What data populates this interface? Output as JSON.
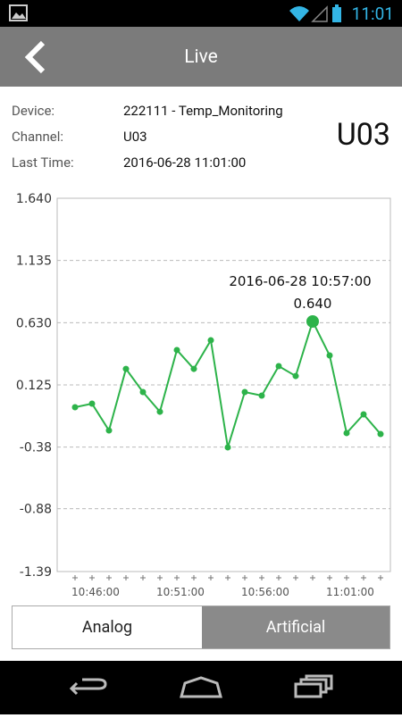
{
  "status_bar": {
    "time": "11:01"
  },
  "header": {
    "title": "Live"
  },
  "info": {
    "rows": [
      {
        "label": "Device:",
        "value": "222111 - Temp_Monitoring"
      },
      {
        "label": "Channel:",
        "value": "U03"
      },
      {
        "label": "Last Time:",
        "value": "2016-06-28 11:01:00"
      }
    ],
    "channel_badge": "U03"
  },
  "chart_data": {
    "type": "line",
    "categories": [
      null,
      "10:46:00",
      null,
      null,
      null,
      null,
      "10:51:00",
      null,
      null,
      null,
      null,
      "10:56:00",
      null,
      null,
      null,
      null,
      "11:01:00",
      null,
      null
    ],
    "values": [
      -0.056,
      -0.027,
      -0.245,
      0.255,
      0.067,
      -0.093,
      0.408,
      0.255,
      0.487,
      -0.382,
      0.067,
      0.038,
      0.277,
      0.197,
      0.64,
      0.364,
      -0.266,
      -0.114,
      -0.274
    ],
    "value_labels": [
      null,
      null,
      null,
      null,
      null,
      null,
      null,
      null,
      null,
      null,
      null,
      null,
      null,
      null,
      "0.640",
      null,
      null,
      null,
      null
    ],
    "annotations": [
      {
        "text": "2016-06-28 10:57:00"
      }
    ],
    "color": "#2db34a",
    "ylim": [
      -1.39,
      1.64
    ],
    "yticks": [
      {
        "value": 1.64,
        "label": "1.640"
      },
      1.135,
      {
        "value": 0.63,
        "label": "0.630"
      },
      0.125,
      -0.38,
      -0.88,
      -1.39
    ],
    "grid": true
  },
  "tabs": [
    "Analog",
    "Artificial"
  ]
}
